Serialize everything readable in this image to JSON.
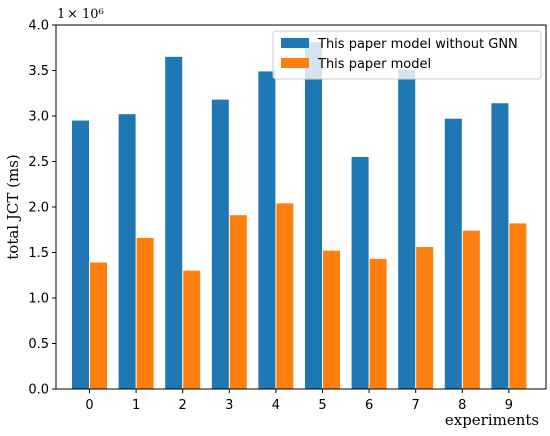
{
  "chart_data": {
    "type": "bar",
    "categories": [
      "0",
      "1",
      "2",
      "3",
      "4",
      "5",
      "6",
      "7",
      "8",
      "9"
    ],
    "series": [
      {
        "name": "This paper model without GNN",
        "color": "#1f77b4",
        "values": [
          2.95,
          3.02,
          3.65,
          3.18,
          3.49,
          3.81,
          2.55,
          3.51,
          2.97,
          3.14
        ]
      },
      {
        "name": "This paper model",
        "color": "#ff7f0e",
        "values": [
          1.39,
          1.66,
          1.3,
          1.91,
          2.04,
          1.52,
          1.43,
          1.56,
          1.74,
          1.82
        ]
      }
    ],
    "xlabel": "experiments",
    "ylabel": "total JCT (ms)",
    "y_scale_factor": "× 10⁶",
    "y_scale_base": "1",
    "ylim": [
      0,
      4.0
    ],
    "yticks": [
      "0.0",
      "0.5",
      "1.0",
      "1.5",
      "2.0",
      "2.5",
      "3.0",
      "3.5",
      "4.0"
    ],
    "legend_position": "top-right",
    "grid": false
  }
}
